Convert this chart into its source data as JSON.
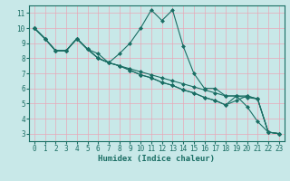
{
  "title": "",
  "xlabel": "Humidex (Indice chaleur)",
  "ylabel": "",
  "background_color": "#c8e8e8",
  "plot_bg_color": "#c8e8e8",
  "grid_color": "#e8a8b8",
  "line_color": "#1a6e64",
  "xlim": [
    -0.5,
    23.5
  ],
  "ylim": [
    2.5,
    11.5
  ],
  "xticks": [
    0,
    1,
    2,
    3,
    4,
    5,
    6,
    7,
    8,
    9,
    10,
    11,
    12,
    13,
    14,
    15,
    16,
    17,
    18,
    19,
    20,
    21,
    22,
    23
  ],
  "yticks": [
    3,
    4,
    5,
    6,
    7,
    8,
    9,
    10,
    11
  ],
  "line1_x": [
    0,
    1,
    2,
    3,
    4,
    5,
    6,
    7,
    8,
    9,
    10,
    11,
    12,
    13,
    14,
    15,
    16,
    17,
    18,
    19,
    20,
    21,
    22,
    23
  ],
  "line1_y": [
    10.0,
    9.3,
    8.5,
    8.5,
    9.3,
    8.6,
    8.3,
    7.7,
    8.3,
    9.0,
    10.0,
    11.2,
    10.5,
    11.2,
    8.8,
    7.0,
    6.0,
    6.0,
    5.5,
    5.5,
    4.8,
    3.8,
    3.1,
    3.0
  ],
  "line2_x": [
    0,
    1,
    2,
    3,
    4,
    5,
    6,
    7,
    8,
    9,
    10,
    11,
    12,
    13,
    14,
    15,
    16,
    17,
    18,
    19,
    20,
    21,
    22,
    23
  ],
  "line2_y": [
    10.0,
    9.3,
    8.5,
    8.5,
    9.3,
    8.6,
    8.0,
    7.7,
    7.5,
    7.3,
    7.1,
    6.9,
    6.7,
    6.5,
    6.3,
    6.1,
    5.9,
    5.7,
    5.5,
    5.5,
    5.4,
    5.3,
    3.1,
    3.0
  ],
  "line3_x": [
    0,
    1,
    2,
    3,
    4,
    5,
    6,
    7,
    8,
    9,
    10,
    11,
    12,
    13,
    14,
    15,
    16,
    17,
    18,
    19,
    20,
    21,
    22,
    23
  ],
  "line3_y": [
    10.0,
    9.3,
    8.5,
    8.5,
    9.3,
    8.6,
    8.0,
    7.7,
    7.5,
    7.2,
    6.9,
    6.7,
    6.4,
    6.2,
    5.9,
    5.7,
    5.4,
    5.2,
    4.9,
    5.2,
    5.5,
    5.3,
    3.1,
    3.0
  ],
  "line4_x": [
    0,
    1,
    2,
    3,
    4,
    5,
    6,
    7,
    8,
    9,
    10,
    11,
    12,
    13,
    14,
    15,
    16,
    17,
    18,
    19,
    20,
    21,
    22,
    23
  ],
  "line4_y": [
    10.0,
    9.3,
    8.5,
    8.5,
    9.3,
    8.6,
    8.0,
    7.7,
    7.5,
    7.2,
    6.9,
    6.7,
    6.4,
    6.2,
    5.9,
    5.7,
    5.4,
    5.2,
    4.9,
    5.5,
    5.5,
    5.3,
    3.1,
    3.0
  ],
  "marker": "D",
  "markersize": 2.0,
  "linewidth": 0.8,
  "tick_fontsize": 5.5,
  "label_fontsize": 6.5
}
